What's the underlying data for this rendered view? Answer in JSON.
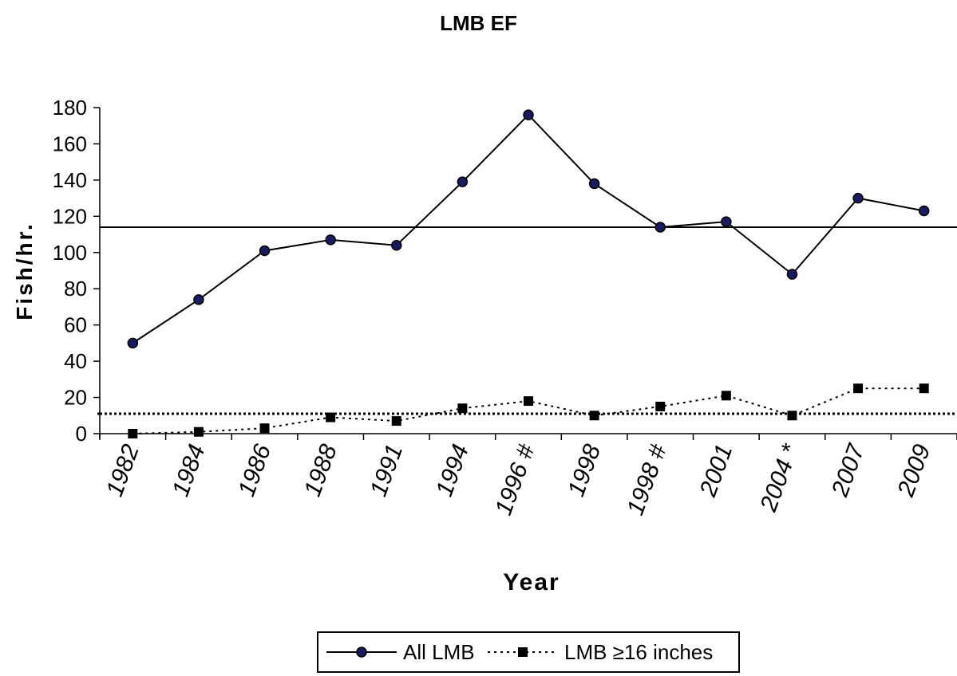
{
  "chart_data": {
    "type": "line",
    "title": "LMB EF",
    "xlabel": "Year",
    "ylabel": "Fish/hr.",
    "categories": [
      "1982",
      "1984",
      "1986",
      "1988",
      "1991",
      "1994",
      "1996 #",
      "1998",
      "1998 #",
      "2001",
      "2004 *",
      "2007",
      "2009"
    ],
    "ylim": [
      0,
      180
    ],
    "yticks": [
      0,
      20,
      40,
      60,
      80,
      100,
      120,
      140,
      160,
      180
    ],
    "grid": false,
    "legend_position": "bottom",
    "series": [
      {
        "name": "All LMB",
        "values": [
          50,
          74,
          101,
          107,
          104,
          139,
          176,
          138,
          114,
          117,
          88,
          130,
          123
        ],
        "color": "#000000",
        "marker": "circle",
        "marker_fill": "#1a1a5e",
        "line_style": "solid"
      },
      {
        "name": "LMB ≥16 inches",
        "values": [
          0,
          1,
          3,
          9,
          7,
          14,
          18,
          10,
          15,
          21,
          10,
          25,
          25
        ],
        "color": "#000000",
        "marker": "square",
        "marker_fill": "#000000",
        "line_style": "dashed"
      }
    ],
    "reference_lines": [
      {
        "value": 114,
        "style": "solid"
      },
      {
        "value": 11,
        "style": "dotted"
      }
    ]
  }
}
